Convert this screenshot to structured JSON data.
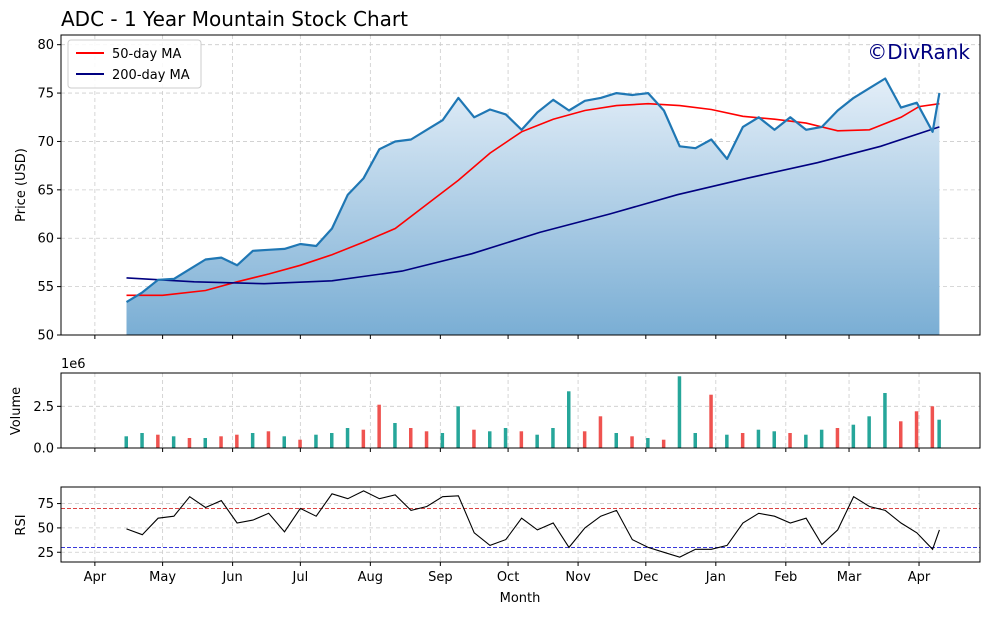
{
  "title": "ADC - 1 Year Mountain Stock Chart",
  "watermark": "©DivRank",
  "colors": {
    "price_line": "#1f77b4",
    "fill_top": "#e3eef8",
    "fill_bottom": "#7aaed4",
    "ma50": "#ff0000",
    "ma200": "#000080",
    "vol_up": "#26a69a",
    "vol_down": "#ef5350",
    "rsi_line": "#000000",
    "rsi_over": "#d62728",
    "rsi_under": "#1f1fd6",
    "watermark": "#000080",
    "grid": "#cccccc"
  },
  "chart_data": [
    {
      "type": "area",
      "panel": "price",
      "ylabel": "Price (USD)",
      "ylim": [
        50,
        81
      ],
      "yticks": [
        50,
        55,
        60,
        65,
        70,
        75,
        80
      ],
      "grid": true,
      "legend": {
        "position": "top-left",
        "entries": [
          "50-day MA",
          "200-day MA"
        ]
      },
      "series": [
        {
          "name": "Price",
          "points": [
            [
              "2024-04-15",
              53.4
            ],
            [
              "2024-04-22",
              54.4
            ],
            [
              "2024-04-29",
              55.7
            ],
            [
              "2024-05-06",
              55.8
            ],
            [
              "2024-05-13",
              56.8
            ],
            [
              "2024-05-20",
              57.8
            ],
            [
              "2024-05-27",
              58.0
            ],
            [
              "2024-06-03",
              57.2
            ],
            [
              "2024-06-10",
              58.7
            ],
            [
              "2024-06-17",
              58.8
            ],
            [
              "2024-06-24",
              58.9
            ],
            [
              "2024-07-01",
              59.4
            ],
            [
              "2024-07-08",
              59.2
            ],
            [
              "2024-07-15",
              61.0
            ],
            [
              "2024-07-22",
              64.5
            ],
            [
              "2024-07-29",
              66.2
            ],
            [
              "2024-08-05",
              69.2
            ],
            [
              "2024-08-12",
              70.0
            ],
            [
              "2024-08-19",
              70.2
            ],
            [
              "2024-08-26",
              71.2
            ],
            [
              "2024-09-02",
              72.2
            ],
            [
              "2024-09-09",
              74.5
            ],
            [
              "2024-09-16",
              72.5
            ],
            [
              "2024-09-23",
              73.3
            ],
            [
              "2024-09-30",
              72.8
            ],
            [
              "2024-10-07",
              71.2
            ],
            [
              "2024-10-14",
              73.0
            ],
            [
              "2024-10-21",
              74.3
            ],
            [
              "2024-10-28",
              73.2
            ],
            [
              "2024-11-04",
              74.2
            ],
            [
              "2024-11-11",
              74.5
            ],
            [
              "2024-11-18",
              75.0
            ],
            [
              "2024-11-25",
              74.8
            ],
            [
              "2024-12-02",
              75.0
            ],
            [
              "2024-12-09",
              73.2
            ],
            [
              "2024-12-16",
              69.5
            ],
            [
              "2024-12-23",
              69.3
            ],
            [
              "2024-12-30",
              70.2
            ],
            [
              "2025-01-06",
              68.2
            ],
            [
              "2025-01-13",
              71.5
            ],
            [
              "2025-01-20",
              72.5
            ],
            [
              "2025-01-27",
              71.2
            ],
            [
              "2025-02-03",
              72.5
            ],
            [
              "2025-02-10",
              71.2
            ],
            [
              "2025-02-17",
              71.5
            ],
            [
              "2025-02-24",
              73.2
            ],
            [
              "2025-03-03",
              74.5
            ],
            [
              "2025-03-10",
              75.5
            ],
            [
              "2025-03-17",
              76.5
            ],
            [
              "2025-03-24",
              73.5
            ],
            [
              "2025-03-31",
              74.0
            ],
            [
              "2025-04-07",
              71.0
            ],
            [
              "2025-04-10",
              75.0
            ]
          ]
        },
        {
          "name": "50-day MA",
          "points": [
            [
              "2024-04-15",
              54.1
            ],
            [
              "2024-05-01",
              54.1
            ],
            [
              "2024-05-20",
              54.6
            ],
            [
              "2024-06-03",
              55.5
            ],
            [
              "2024-06-17",
              56.3
            ],
            [
              "2024-07-01",
              57.2
            ],
            [
              "2024-07-15",
              58.3
            ],
            [
              "2024-07-29",
              59.6
            ],
            [
              "2024-08-12",
              61.0
            ],
            [
              "2024-08-26",
              63.5
            ],
            [
              "2024-09-09",
              66.0
            ],
            [
              "2024-09-23",
              68.8
            ],
            [
              "2024-10-07",
              71.0
            ],
            [
              "2024-10-21",
              72.3
            ],
            [
              "2024-11-04",
              73.2
            ],
            [
              "2024-11-18",
              73.7
            ],
            [
              "2024-12-02",
              73.9
            ],
            [
              "2024-12-16",
              73.7
            ],
            [
              "2024-12-30",
              73.3
            ],
            [
              "2025-01-13",
              72.6
            ],
            [
              "2025-01-27",
              72.3
            ],
            [
              "2025-02-10",
              71.9
            ],
            [
              "2025-02-24",
              71.1
            ],
            [
              "2025-03-10",
              71.2
            ],
            [
              "2025-03-24",
              72.5
            ],
            [
              "2025-04-01",
              73.6
            ],
            [
              "2025-04-10",
              73.9
            ]
          ]
        },
        {
          "name": "200-day MA",
          "points": [
            [
              "2024-04-15",
              55.9
            ],
            [
              "2024-05-15",
              55.5
            ],
            [
              "2024-06-15",
              55.3
            ],
            [
              "2024-07-15",
              55.6
            ],
            [
              "2024-08-15",
              56.6
            ],
            [
              "2024-09-15",
              58.4
            ],
            [
              "2024-10-15",
              60.6
            ],
            [
              "2024-11-15",
              62.5
            ],
            [
              "2024-12-15",
              64.5
            ],
            [
              "2025-01-15",
              66.2
            ],
            [
              "2025-02-15",
              67.8
            ],
            [
              "2025-03-15",
              69.5
            ],
            [
              "2025-04-10",
              71.5
            ]
          ]
        }
      ]
    },
    {
      "type": "bar",
      "panel": "volume",
      "ylabel": "Volume",
      "scale_label": "1e6",
      "ylim": [
        0,
        4.5
      ],
      "yticks": [
        0,
        2.5
      ],
      "ytick_labels": [
        "0.0",
        "2.5"
      ],
      "grid": true,
      "series": [
        {
          "name": "Volume",
          "points": [
            [
              "2024-04-15",
              0.7,
              1
            ],
            [
              "2024-04-22",
              0.9,
              1
            ],
            [
              "2024-04-29",
              0.8,
              0
            ],
            [
              "2024-05-06",
              0.7,
              1
            ],
            [
              "2024-05-13",
              0.6,
              0
            ],
            [
              "2024-05-20",
              0.6,
              1
            ],
            [
              "2024-05-27",
              0.7,
              0
            ],
            [
              "2024-06-03",
              0.8,
              0
            ],
            [
              "2024-06-10",
              0.9,
              1
            ],
            [
              "2024-06-17",
              1.0,
              0
            ],
            [
              "2024-06-24",
              0.7,
              1
            ],
            [
              "2024-07-01",
              0.5,
              0
            ],
            [
              "2024-07-08",
              0.8,
              1
            ],
            [
              "2024-07-15",
              0.9,
              1
            ],
            [
              "2024-07-22",
              1.2,
              1
            ],
            [
              "2024-07-29",
              1.1,
              0
            ],
            [
              "2024-08-05",
              2.6,
              0
            ],
            [
              "2024-08-12",
              1.5,
              1
            ],
            [
              "2024-08-19",
              1.2,
              0
            ],
            [
              "2024-08-26",
              1.0,
              0
            ],
            [
              "2024-09-02",
              0.9,
              1
            ],
            [
              "2024-09-09",
              2.5,
              1
            ],
            [
              "2024-09-16",
              1.1,
              0
            ],
            [
              "2024-09-23",
              1.0,
              1
            ],
            [
              "2024-09-30",
              1.2,
              1
            ],
            [
              "2024-10-07",
              1.0,
              0
            ],
            [
              "2024-10-14",
              0.8,
              1
            ],
            [
              "2024-10-21",
              1.2,
              1
            ],
            [
              "2024-10-28",
              3.4,
              1
            ],
            [
              "2024-11-04",
              1.0,
              0
            ],
            [
              "2024-11-11",
              1.9,
              0
            ],
            [
              "2024-11-18",
              0.9,
              1
            ],
            [
              "2024-11-25",
              0.7,
              0
            ],
            [
              "2024-12-02",
              0.6,
              1
            ],
            [
              "2024-12-09",
              0.5,
              0
            ],
            [
              "2024-12-16",
              4.3,
              1
            ],
            [
              "2024-12-23",
              0.9,
              1
            ],
            [
              "2024-12-30",
              3.2,
              0
            ],
            [
              "2025-01-06",
              0.8,
              1
            ],
            [
              "2025-01-13",
              0.9,
              0
            ],
            [
              "2025-01-20",
              1.1,
              1
            ],
            [
              "2025-01-27",
              1.0,
              1
            ],
            [
              "2025-02-03",
              0.9,
              0
            ],
            [
              "2025-02-10",
              0.8,
              1
            ],
            [
              "2025-02-17",
              1.1,
              1
            ],
            [
              "2025-02-24",
              1.2,
              0
            ],
            [
              "2025-03-03",
              1.4,
              1
            ],
            [
              "2025-03-10",
              1.9,
              1
            ],
            [
              "2025-03-17",
              3.3,
              1
            ],
            [
              "2025-03-24",
              1.6,
              0
            ],
            [
              "2025-03-31",
              2.2,
              0
            ],
            [
              "2025-04-07",
              2.5,
              0
            ],
            [
              "2025-04-10",
              1.7,
              1
            ]
          ]
        }
      ]
    },
    {
      "type": "line",
      "panel": "rsi",
      "ylabel": "RSI",
      "xlabel": "Month",
      "ylim": [
        15,
        92
      ],
      "yticks": [
        25,
        50,
        75
      ],
      "grid": true,
      "reference_lines": [
        70,
        30
      ],
      "series": [
        {
          "name": "RSI",
          "points": [
            [
              "2024-04-15",
              49
            ],
            [
              "2024-04-22",
              43
            ],
            [
              "2024-04-29",
              60
            ],
            [
              "2024-05-06",
              62
            ],
            [
              "2024-05-13",
              82
            ],
            [
              "2024-05-20",
              71
            ],
            [
              "2024-05-27",
              78
            ],
            [
              "2024-06-03",
              55
            ],
            [
              "2024-06-10",
              58
            ],
            [
              "2024-06-17",
              65
            ],
            [
              "2024-06-24",
              46
            ],
            [
              "2024-07-01",
              70
            ],
            [
              "2024-07-08",
              62
            ],
            [
              "2024-07-15",
              85
            ],
            [
              "2024-07-22",
              80
            ],
            [
              "2024-07-29",
              88
            ],
            [
              "2024-08-05",
              80
            ],
            [
              "2024-08-12",
              84
            ],
            [
              "2024-08-19",
              68
            ],
            [
              "2024-08-26",
              72
            ],
            [
              "2024-09-02",
              82
            ],
            [
              "2024-09-09",
              83
            ],
            [
              "2024-09-16",
              45
            ],
            [
              "2024-09-23",
              32
            ],
            [
              "2024-09-30",
              38
            ],
            [
              "2024-10-07",
              60
            ],
            [
              "2024-10-14",
              48
            ],
            [
              "2024-10-21",
              55
            ],
            [
              "2024-10-28",
              30
            ],
            [
              "2024-11-04",
              50
            ],
            [
              "2024-11-11",
              62
            ],
            [
              "2024-11-18",
              68
            ],
            [
              "2024-11-25",
              38
            ],
            [
              "2024-12-02",
              30
            ],
            [
              "2024-12-09",
              25
            ],
            [
              "2024-12-16",
              20
            ],
            [
              "2024-12-23",
              28
            ],
            [
              "2024-12-30",
              28
            ],
            [
              "2025-01-06",
              32
            ],
            [
              "2025-01-13",
              55
            ],
            [
              "2025-01-20",
              65
            ],
            [
              "2025-01-27",
              62
            ],
            [
              "2025-02-03",
              55
            ],
            [
              "2025-02-10",
              60
            ],
            [
              "2025-02-17",
              33
            ],
            [
              "2025-02-24",
              48
            ],
            [
              "2025-03-03",
              82
            ],
            [
              "2025-03-10",
              72
            ],
            [
              "2025-03-17",
              68
            ],
            [
              "2025-03-24",
              55
            ],
            [
              "2025-03-31",
              45
            ],
            [
              "2025-04-07",
              28
            ],
            [
              "2025-04-10",
              48
            ]
          ]
        }
      ]
    }
  ],
  "x_axis": {
    "ticks": [
      {
        "label": "Apr",
        "date": "2024-04-01"
      },
      {
        "label": "May",
        "date": "2024-05-01"
      },
      {
        "label": "Jun",
        "date": "2024-06-01"
      },
      {
        "label": "Jul",
        "date": "2024-07-01"
      },
      {
        "label": "Aug",
        "date": "2024-08-01"
      },
      {
        "label": "Sep",
        "date": "2024-09-01"
      },
      {
        "label": "Oct",
        "date": "2024-10-01"
      },
      {
        "label": "Nov",
        "date": "2024-11-01"
      },
      {
        "label": "Dec",
        "date": "2024-12-01"
      },
      {
        "label": "Jan",
        "date": "2025-01-01"
      },
      {
        "label": "Feb",
        "date": "2025-02-01"
      },
      {
        "label": "Mar",
        "date": "2025-03-01"
      },
      {
        "label": "Apr",
        "date": "2025-04-01"
      }
    ],
    "range": [
      "2024-03-17",
      "2025-04-28"
    ]
  }
}
